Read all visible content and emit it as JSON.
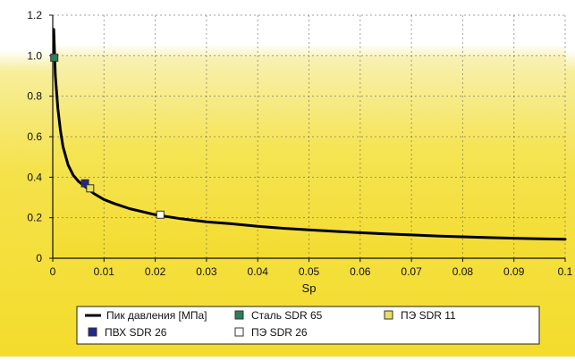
{
  "chart_data": {
    "type": "line",
    "xlabel": "Sp",
    "ylabel": "",
    "xlim": [
      0,
      0.1
    ],
    "ylim": [
      0,
      1.2
    ],
    "x_ticks": [
      "0",
      "0.01",
      "0.02",
      "0.03",
      "0.04",
      "0.05",
      "0.06",
      "0.07",
      "0.08",
      "0.09",
      "0.1"
    ],
    "y_ticks": [
      "0",
      "0.2",
      "0.4",
      "0.6",
      "0.8",
      "1.0",
      "1.2"
    ],
    "grid": true,
    "legend_position": "bottom",
    "series": [
      {
        "name": "Пик давления [МПа]",
        "color": "#000000",
        "points": [
          [
            0.0002,
            1.13
          ],
          [
            0.0005,
            0.9
          ],
          [
            0.001,
            0.74
          ],
          [
            0.0015,
            0.63
          ],
          [
            0.002,
            0.55
          ],
          [
            0.003,
            0.46
          ],
          [
            0.004,
            0.41
          ],
          [
            0.005,
            0.38
          ],
          [
            0.006,
            0.36
          ],
          [
            0.007,
            0.34
          ],
          [
            0.008,
            0.32
          ],
          [
            0.01,
            0.29
          ],
          [
            0.012,
            0.27
          ],
          [
            0.015,
            0.245
          ],
          [
            0.02,
            0.215
          ],
          [
            0.025,
            0.195
          ],
          [
            0.03,
            0.18
          ],
          [
            0.035,
            0.17
          ],
          [
            0.04,
            0.158
          ],
          [
            0.045,
            0.148
          ],
          [
            0.05,
            0.14
          ],
          [
            0.055,
            0.133
          ],
          [
            0.06,
            0.126
          ],
          [
            0.065,
            0.12
          ],
          [
            0.07,
            0.115
          ],
          [
            0.075,
            0.11
          ],
          [
            0.08,
            0.106
          ],
          [
            0.085,
            0.102
          ],
          [
            0.09,
            0.099
          ],
          [
            0.095,
            0.096
          ],
          [
            0.1,
            0.094
          ]
        ]
      }
    ],
    "markers": [
      {
        "name": "Сталь SDR 65",
        "x": 0.0003,
        "y": 0.99,
        "color": "#2e7d5b"
      },
      {
        "name": "ПВХ SDR 26",
        "x": 0.0063,
        "y": 0.37,
        "color": "#1f2a8a"
      },
      {
        "name": "ПЭ SDR 11",
        "x": 0.0073,
        "y": 0.345,
        "color": "#e8e060"
      },
      {
        "name": "ПЭ SDR 26",
        "x": 0.021,
        "y": 0.215,
        "color": "#ffffff"
      }
    ],
    "colors": {
      "background_top": "#ffffff",
      "background_mid": "#f6ea9a",
      "background_bottom": "#f4de36",
      "plot_area": "#f4de36",
      "grid": "#ffffff",
      "legend_bg": "#ffffff"
    }
  }
}
